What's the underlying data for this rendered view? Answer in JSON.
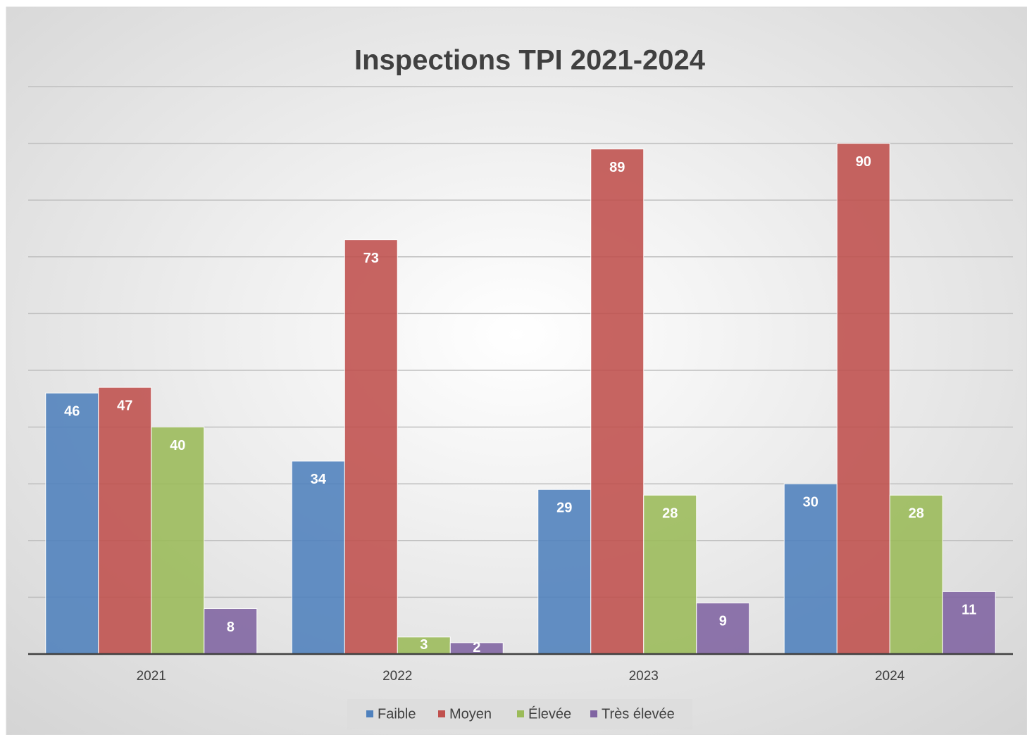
{
  "chart_data": {
    "type": "bar",
    "title": "Inspections TPI 2021-2024",
    "categories": [
      "2021",
      "2022",
      "2023",
      "2024"
    ],
    "series": [
      {
        "name": "Faible",
        "color": "#4f81bd",
        "values": [
          46,
          34,
          29,
          30
        ]
      },
      {
        "name": "Moyen",
        "color": "#c0504d",
        "values": [
          47,
          73,
          89,
          90
        ]
      },
      {
        "name": "Élevée",
        "color": "#9bbb59",
        "values": [
          40,
          3,
          28,
          28
        ]
      },
      {
        "name": "Très élevée",
        "color": "#8064a2",
        "values": [
          8,
          2,
          9,
          11
        ]
      }
    ],
    "ylim": [
      0,
      100
    ],
    "yticks": [
      0,
      10,
      20,
      30,
      40,
      50,
      60,
      70,
      80,
      90,
      100
    ],
    "grid": true,
    "legend": "bottom"
  }
}
